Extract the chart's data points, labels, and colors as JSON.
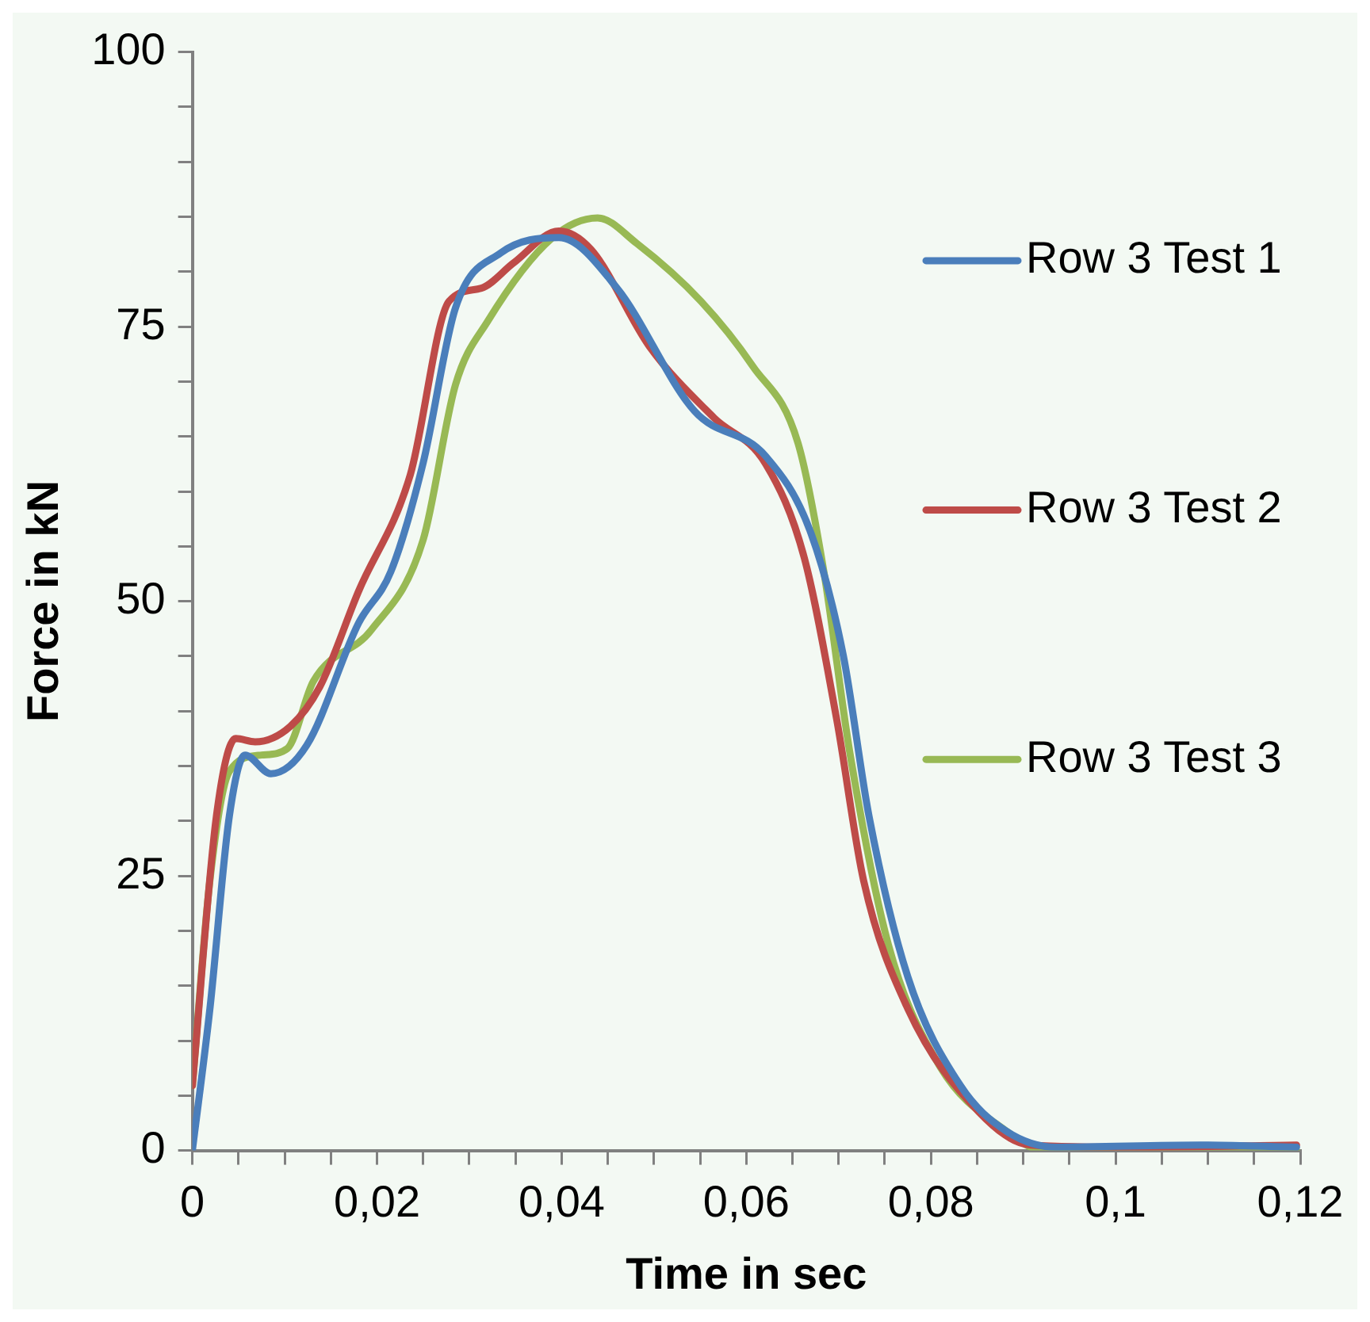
{
  "chart_data": {
    "type": "line",
    "xlabel": "Time in sec",
    "ylabel": "Force in kN",
    "xlim": [
      0,
      0.12
    ],
    "xticks": [
      0,
      {
        "value": 0.005,
        "label": null
      },
      {
        "value": 0.01,
        "label": null
      },
      {
        "value": 0.015,
        "label": null
      },
      {
        "value": 0.02,
        "label": "0,02"
      },
      {
        "value": 0.025,
        "label": null
      },
      {
        "value": 0.03,
        "label": null
      },
      {
        "value": 0.035,
        "label": null
      },
      {
        "value": 0.04,
        "label": "0,04"
      },
      {
        "value": 0.045,
        "label": null
      },
      {
        "value": 0.05,
        "label": null
      },
      {
        "value": 0.055,
        "label": null
      },
      {
        "value": 0.06,
        "label": "0,06"
      },
      {
        "value": 0.065,
        "label": null
      },
      {
        "value": 0.07,
        "label": null
      },
      {
        "value": 0.075,
        "label": null
      },
      {
        "value": 0.08,
        "label": "0,08"
      },
      {
        "value": 0.085,
        "label": null
      },
      {
        "value": 0.09,
        "label": null
      },
      {
        "value": 0.095,
        "label": null
      },
      {
        "value": 0.1,
        "label": "0,1"
      },
      {
        "value": 0.105,
        "label": null
      },
      {
        "value": 0.11,
        "label": null
      },
      {
        "value": 0.115,
        "label": null
      },
      {
        "value": 0.12,
        "label": "0,12"
      }
    ],
    "ylim": [
      0,
      100
    ],
    "yticks": [
      0,
      {
        "value": 5,
        "label": null
      },
      {
        "value": 10,
        "label": null
      },
      {
        "value": 15,
        "label": null
      },
      {
        "value": 20,
        "label": null
      },
      25,
      {
        "value": 30,
        "label": null
      },
      {
        "value": 35,
        "label": null
      },
      {
        "value": 40,
        "label": null
      },
      {
        "value": 45,
        "label": null
      },
      50,
      {
        "value": 55,
        "label": null
      },
      {
        "value": 60,
        "label": null
      },
      {
        "value": 65,
        "label": null
      },
      {
        "value": 70,
        "label": null
      },
      75,
      {
        "value": 80,
        "label": null
      },
      {
        "value": 85,
        "label": null
      },
      {
        "value": 90,
        "label": null
      },
      {
        "value": 95,
        "label": null
      },
      100
    ],
    "grid": false,
    "legend": "right",
    "marker": "none",
    "line_style": "solid",
    "series": [
      {
        "name": "Row 3 Test 1",
        "color": "#4a7ebb",
        "x": [
          0,
          0.0019,
          0.004,
          0.0057,
          0.0085,
          0.0124,
          0.018,
          0.0215,
          0.025,
          0.0285,
          0.0334,
          0.0397,
          0.046,
          0.0544,
          0.0621,
          0.067,
          0.0705,
          0.0733,
          0.0775,
          0.0832,
          0.0881,
          0.0936,
          0.1091,
          0.1196
        ],
        "values": [
          0,
          12.9,
          30.4,
          36,
          34.3,
          36.9,
          48,
          52.7,
          62.6,
          76.7,
          81.7,
          83.1,
          78.5,
          67.3,
          63.2,
          56.2,
          45.1,
          30.4,
          15.8,
          5.9,
          1.8,
          0.3,
          0.5,
          0.3
        ]
      },
      {
        "name": "Row 3 Test 2",
        "color": "#be4b48",
        "x": [
          0,
          0.0026,
          0.0047,
          0.0068,
          0.0106,
          0.0138,
          0.018,
          0.0236,
          0.0278,
          0.0313,
          0.0348,
          0.0397,
          0.0432,
          0.0495,
          0.0565,
          0.0621,
          0.0663,
          0.0698,
          0.0727,
          0.0775,
          0.0852,
          0.0908,
          0.1021,
          0.1196
        ],
        "values": [
          5.9,
          30.4,
          37.5,
          37.2,
          38.6,
          42.2,
          50.9,
          61.5,
          77.3,
          78.5,
          80.8,
          83.7,
          82,
          73.2,
          66.7,
          62.5,
          53.9,
          39.2,
          24.6,
          12.9,
          3.5,
          0.5,
          0.3,
          0.5
        ]
      },
      {
        "name": "Row 3 Test 3",
        "color": "#98b954",
        "x": [
          0,
          0.0019,
          0.004,
          0.0075,
          0.0103,
          0.0131,
          0.0194,
          0.025,
          0.0285,
          0.032,
          0.039,
          0.0439,
          0.0481,
          0.0551,
          0.0607,
          0.0656,
          0.0684,
          0.0712,
          0.0754,
          0.081,
          0.0881,
          0.0923,
          0.1196
        ],
        "values": [
          5.9,
          24.6,
          34.5,
          36,
          36.6,
          42.7,
          47.4,
          55.6,
          69.7,
          75.5,
          83.1,
          84.9,
          82.6,
          77.3,
          71.4,
          64.4,
          52.7,
          36.3,
          18.7,
          7.6,
          1.8,
          0,
          0
        ]
      }
    ]
  }
}
